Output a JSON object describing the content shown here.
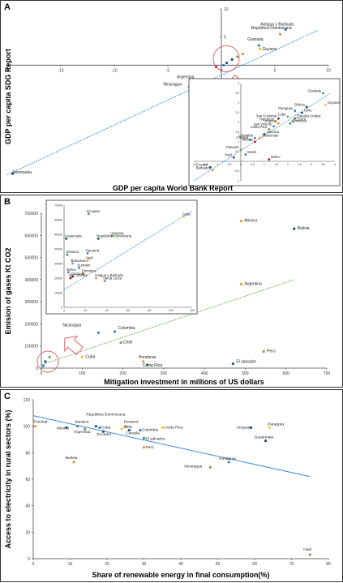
{
  "panels": [
    {
      "letter": "A"
    },
    {
      "letter": "B"
    },
    {
      "letter": "C"
    }
  ],
  "chart_data": [
    {
      "type": "scatter",
      "panel": "A",
      "xlabel": "GDP per capita World Bank Report",
      "ylabel": "GDP per capita SDG Report",
      "xlim": [
        -20,
        10
      ],
      "ylim": [
        -20,
        10
      ],
      "xticks": [
        -20,
        -15,
        -10,
        -5,
        0,
        5,
        10
      ],
      "yticks": [
        -15,
        -10,
        -5,
        5,
        10
      ],
      "trendline": [
        [
          -20,
          -19.5
        ],
        [
          9,
          6.2
        ]
      ],
      "points": [
        {
          "label": "Venezuela",
          "x": -19.5,
          "y": -19.3,
          "color": "#1f4e79"
        },
        {
          "label": "Argentina",
          "x": -2.5,
          "y": -2.8,
          "color": "#e8a33c"
        },
        {
          "label": "Nicaragua",
          "x": -3.0,
          "y": -3.9,
          "color": "#6aa84f"
        },
        {
          "label": "Granada",
          "x": 3.5,
          "y": 3.5,
          "color": "#3c9b5f"
        },
        {
          "label": "Guyana",
          "x": 3.6,
          "y": 2.9,
          "color": "#f1c232"
        },
        {
          "label": "Antigua y Barbuda",
          "x": 6.0,
          "y": 6.3,
          "color": "#3d85c6"
        },
        {
          "label": "República Dominicana",
          "x": 5.5,
          "y": 5.5,
          "color": "#e69138"
        },
        {
          "label": "",
          "x": 1.0,
          "y": 1.0,
          "color": "#1f4e79"
        },
        {
          "label": "",
          "x": 1.5,
          "y": 1.5,
          "color": "#6aa84f"
        },
        {
          "label": "",
          "x": 2.0,
          "y": 2.0,
          "color": "#e69138"
        },
        {
          "label": "",
          "x": 0.5,
          "y": 0.4,
          "color": "#1f4e79"
        },
        {
          "label": "",
          "x": 0.2,
          "y": 0.0,
          "color": "#3c78d8"
        },
        {
          "label": "",
          "x": -0.5,
          "y": -0.3,
          "color": "#cc0000"
        }
      ],
      "inset": {
        "xlim": [
          -2,
          4
        ],
        "ylim": [
          -1,
          4
        ],
        "xticks": [
          -2,
          -1.5,
          -1,
          -0.5,
          0,
          0.5,
          1,
          1.5,
          2,
          2.5,
          3,
          3.5,
          4
        ],
        "yticks": [
          -1,
          -0.5,
          0,
          0.5,
          1,
          1.5,
          2,
          2.5,
          3,
          3.5,
          4
        ],
        "trendline": [
          [
            -2,
            -1.0
          ],
          [
            3.8,
            3.5
          ]
        ],
        "points": [
          {
            "label": "Granada",
            "x": 3.5,
            "y": 3.5,
            "color": "#3c9b5f"
          },
          {
            "label": "Guyana",
            "x": 3.6,
            "y": 2.9,
            "color": "#f1c232"
          },
          {
            "label": "Bolivia",
            "x": 2.8,
            "y": 2.8,
            "color": "#1f4e79"
          },
          {
            "label": "Paraguay",
            "x": 2.3,
            "y": 2.6,
            "color": "#3c78d8"
          },
          {
            "label": "Chile",
            "x": 2.6,
            "y": 2.5,
            "color": "#1f4e79"
          },
          {
            "label": "Cuba",
            "x": 2.0,
            "y": 2.3,
            "color": "#6aa84f"
          },
          {
            "label": "Estados Unidos",
            "x": 2.3,
            "y": 2.2,
            "color": "#3d85c6"
          },
          {
            "label": "El Perú",
            "x": 2.2,
            "y": 2.05,
            "color": "#e69138"
          },
          {
            "label": "Dominica",
            "x": 2.1,
            "y": 1.95,
            "color": "#3c9b5f"
          },
          {
            "label": "San Cristobal",
            "x": 1.6,
            "y": 2.2,
            "color": "#1f4e79"
          },
          {
            "label": "Honduras",
            "x": 1.5,
            "y": 2.05,
            "color": "#f1c232"
          },
          {
            "label": "Uruguay",
            "x": 1.6,
            "y": 1.95,
            "color": "#e69138"
          },
          {
            "label": "San Vicente",
            "x": 1.4,
            "y": 1.8,
            "color": "#3c78d8"
          },
          {
            "label": "Costa Rica",
            "x": 1.2,
            "y": 1.65,
            "color": "#6aa84f"
          },
          {
            "label": "Jamaica",
            "x": 1.0,
            "y": 1.4,
            "color": "#1f4e79"
          },
          {
            "label": "Guatemala",
            "x": 0.8,
            "y": 1.2,
            "color": "#e69138"
          },
          {
            "label": "Colombia",
            "x": 0.6,
            "y": 1.2,
            "color": "#3c78d8"
          },
          {
            "label": "Canadá",
            "x": 0.4,
            "y": 1.1,
            "color": "#3d85c6"
          },
          {
            "label": "México",
            "x": 0.6,
            "y": 1.0,
            "color": "#cc0000"
          },
          {
            "label": "Panamá",
            "x": 0.0,
            "y": 0.6,
            "color": "#6aa84f"
          },
          {
            "label": "Brasil",
            "x": 0.2,
            "y": 0.35,
            "color": "#3c78d8"
          },
          {
            "label": "Haití",
            "x": -0.3,
            "y": 0.2,
            "color": "#1f4e79"
          },
          {
            "label": "Belice",
            "x": 1.2,
            "y": 0.1,
            "color": "#cc0000"
          },
          {
            "label": "Ecuador",
            "x": -1.3,
            "y": -0.3,
            "color": "#1f4e79"
          },
          {
            "label": "Barbados",
            "x": -1.2,
            "y": -0.45,
            "color": "#e69138"
          }
        ]
      }
    },
    {
      "type": "scatter",
      "panel": "B",
      "xlabel": "Mitigation investment in millions of US dollars",
      "ylabel": "Emision of gases Kt CO2",
      "xlim": [
        0,
        700
      ],
      "ylim": [
        0,
        700000
      ],
      "xticks": [
        0,
        100,
        200,
        300,
        400,
        500,
        600,
        700
      ],
      "yticks": [
        0,
        100000,
        200000,
        300000,
        400000,
        500000,
        600000,
        700000
      ],
      "trendline": [
        [
          0,
          15000
        ],
        [
          620,
          400000
        ]
      ],
      "points": [
        {
          "label": "México",
          "x": 490,
          "y": 665000,
          "color": "#e69138"
        },
        {
          "label": "Bolivia",
          "x": 620,
          "y": 630000,
          "color": "#1f4e79"
        },
        {
          "label": "Argentina",
          "x": 490,
          "y": 380000,
          "color": "#e69138"
        },
        {
          "label": "Colombia",
          "x": 180,
          "y": 165000,
          "color": "#3c78d8"
        },
        {
          "label": "Chile",
          "x": 195,
          "y": 115000,
          "color": "#6aa84f"
        },
        {
          "label": "Perú",
          "x": 545,
          "y": 75000,
          "color": "#6aa84f"
        },
        {
          "label": "El salvador",
          "x": 470,
          "y": 20000,
          "color": "#1f4e79"
        },
        {
          "label": "Honduras",
          "x": 250,
          "y": 30000,
          "color": "#e69138"
        },
        {
          "label": "Costa Rica",
          "x": 260,
          "y": 15000,
          "color": "#3c9b5f"
        },
        {
          "label": "Cuba",
          "x": 100,
          "y": 50000,
          "color": "#f1c232"
        },
        {
          "label": "Nicaragua",
          "x": 140,
          "y": 160000,
          "color": "#3d85c6"
        },
        {
          "label": "",
          "x": 20,
          "y": 50000,
          "color": "#6aa84f"
        },
        {
          "label": "",
          "x": 10,
          "y": 30000,
          "color": "#1f4e79"
        },
        {
          "label": "",
          "x": 5,
          "y": 10000,
          "color": "#3c78d8"
        }
      ],
      "inset": {
        "xlim": [
          0,
          120
        ],
        "ylim": [
          0,
          70000
        ],
        "xticks": [
          0,
          20,
          40,
          60,
          80,
          100,
          120
        ],
        "yticks": [
          0,
          10000,
          20000,
          30000,
          40000,
          50000,
          60000,
          70000
        ],
        "trendline": [
          [
            0,
            12000
          ],
          [
            120,
            66000
          ]
        ],
        "points": [
          {
            "label": "Ecuador",
            "x": 23,
            "y": 64000,
            "color": "#3c9b5f"
          },
          {
            "label": "Cuba",
            "x": 112,
            "y": 62000,
            "color": "#f1c232"
          },
          {
            "label": "Uruguay",
            "x": 45,
            "y": 49000,
            "color": "#6aa84f"
          },
          {
            "label": "República Dominicana",
            "x": 32,
            "y": 47000,
            "color": "#1f4e79"
          },
          {
            "label": "Guatemala",
            "x": 2,
            "y": 47000,
            "color": "#1f4e79"
          },
          {
            "label": "Panamá",
            "x": 22,
            "y": 37000,
            "color": "#3c78d8"
          },
          {
            "label": "Jamaica",
            "x": 3,
            "y": 36000,
            "color": "#3c9b5f"
          },
          {
            "label": "Haití",
            "x": 22,
            "y": 32000,
            "color": "#e69138"
          },
          {
            "label": "Bahamas",
            "x": 8,
            "y": 30000,
            "color": "#6aa84f"
          },
          {
            "label": "Surinam",
            "x": 14,
            "y": 27000,
            "color": "#3c78d8"
          },
          {
            "label": "Belice",
            "x": 4,
            "y": 24000,
            "color": "#3c78d8"
          },
          {
            "label": "Dominica",
            "x": 18,
            "y": 23000,
            "color": "#e69138"
          },
          {
            "label": "Granada",
            "x": 8,
            "y": 21000,
            "color": "#1f4e79"
          },
          {
            "label": "San Vicente",
            "x": 6,
            "y": 20000,
            "color": "#cc0000"
          },
          {
            "label": "Antigua y Barbuda",
            "x": 30,
            "y": 20000,
            "color": "#e69138"
          },
          {
            "label": "Santa Lucía",
            "x": 38,
            "y": 18000,
            "color": "#6aa84f"
          }
        ]
      }
    },
    {
      "type": "scatter",
      "panel": "C",
      "xlabel": "Share of renewable energy in final consumption(%)",
      "ylabel": "Access to electricity in rural sectors (%)",
      "xlim": [
        0,
        80
      ],
      "ylim": [
        0,
        120
      ],
      "xticks": [
        0,
        10,
        20,
        30,
        40,
        50,
        60,
        70,
        80
      ],
      "yticks": [
        0,
        20,
        40,
        60,
        80,
        100,
        120
      ],
      "trendline": [
        [
          0,
          108
        ],
        [
          75,
          62
        ]
      ],
      "points": [
        {
          "label": "Trinidad",
          "x": 0.5,
          "y": 100,
          "color": "#e69138"
        },
        {
          "label": "México",
          "x": 9,
          "y": 99,
          "color": "#1f4e79"
        },
        {
          "label": "Jamaica",
          "x": 12,
          "y": 100,
          "color": "#3d85c6"
        },
        {
          "label": "República Dominicana",
          "x": 17,
          "y": 100,
          "color": "#1f4e79"
        },
        {
          "label": "Cuba",
          "x": 18,
          "y": 99,
          "color": "#3c78d8"
        },
        {
          "label": "Argentina",
          "x": 14,
          "y": 98,
          "color": "#6aa84f"
        },
        {
          "label": "Ecuador",
          "x": 19,
          "y": 96,
          "color": "#1f4e79"
        },
        {
          "label": "Panamá",
          "x": 25,
          "y": 100,
          "color": "#e69138"
        },
        {
          "label": "Chile",
          "x": 24,
          "y": 98,
          "color": "#f1c232"
        },
        {
          "label": "Canada",
          "x": 26,
          "y": 97,
          "color": "#1f4e79"
        },
        {
          "label": "Colombia",
          "x": 29,
          "y": 97,
          "color": "#3c78d8"
        },
        {
          "label": "Costa Rica",
          "x": 35,
          "y": 99,
          "color": "#f1c232"
        },
        {
          "label": "El salvador",
          "x": 30,
          "y": 91,
          "color": "#3c9b5f"
        },
        {
          "label": "Perú",
          "x": 30,
          "y": 84,
          "color": "#e69138"
        },
        {
          "label": "Uruguay",
          "x": 59,
          "y": 99,
          "color": "#1f4e79"
        },
        {
          "label": "Paraguay",
          "x": 64,
          "y": 99,
          "color": "#f1c232"
        },
        {
          "label": "Guatemala",
          "x": 63,
          "y": 89,
          "color": "#1f4e79"
        },
        {
          "label": "Honduras",
          "x": 53,
          "y": 73,
          "color": "#3d85c6"
        },
        {
          "label": "Nicaragua",
          "x": 48,
          "y": 69,
          "color": "#6aa84f"
        },
        {
          "label": "Bolivia",
          "x": 11,
          "y": 73,
          "color": "#e69138"
        },
        {
          "label": "Haití",
          "x": 75,
          "y": 3,
          "color": "#6aa84f"
        }
      ]
    }
  ]
}
